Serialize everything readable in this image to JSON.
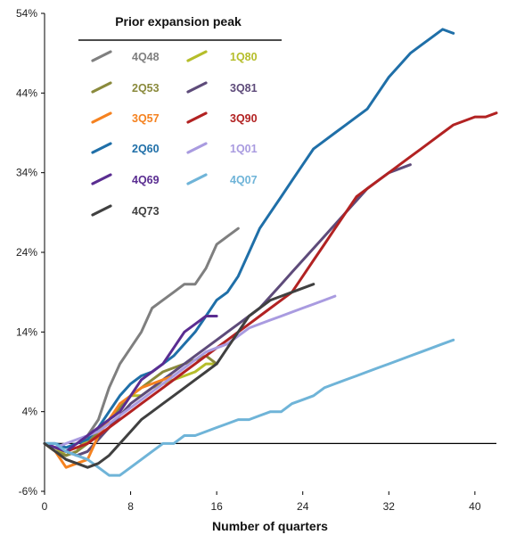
{
  "chart_data": {
    "type": "line",
    "xlabel": "Number of quarters",
    "ylabel": "",
    "xlim": [
      0,
      42
    ],
    "ylim": [
      -6,
      54
    ],
    "x_ticks": [
      0,
      8,
      16,
      24,
      32,
      40
    ],
    "y_ticks": [
      -6,
      4,
      14,
      24,
      34,
      44,
      54
    ],
    "y_tick_labels": [
      "-6%",
      "4%",
      "14%",
      "24%",
      "34%",
      "44%",
      "54%"
    ],
    "grid": false,
    "legend": {
      "title": "Prior expansion peak",
      "placement": "top-left",
      "columns": 2
    },
    "series": [
      {
        "name": "4Q48",
        "color": "#7f7f7f",
        "values": [
          [
            0,
            0
          ],
          [
            1,
            -1
          ],
          [
            2,
            -1.5
          ],
          [
            3,
            -1
          ],
          [
            4,
            1
          ],
          [
            5,
            3
          ],
          [
            6,
            7
          ],
          [
            7,
            10
          ],
          [
            8,
            12
          ],
          [
            9,
            14
          ],
          [
            10,
            17
          ],
          [
            11,
            18
          ],
          [
            12,
            19
          ],
          [
            13,
            20
          ],
          [
            14,
            20
          ],
          [
            15,
            22
          ],
          [
            16,
            25
          ],
          [
            17,
            26
          ],
          [
            18,
            27
          ]
        ]
      },
      {
        "name": "1Q80",
        "color": "#b5bd2a",
        "values": [
          [
            0,
            0
          ],
          [
            1,
            -0.5
          ],
          [
            2,
            -1.5
          ],
          [
            3,
            -1
          ],
          [
            4,
            0.5
          ],
          [
            5,
            2
          ],
          [
            6,
            3
          ],
          [
            7,
            4
          ],
          [
            8,
            6
          ],
          [
            9,
            6
          ],
          [
            10,
            7
          ],
          [
            11,
            7.5
          ],
          [
            12,
            8
          ],
          [
            13,
            8.5
          ],
          [
            14,
            9
          ],
          [
            15,
            10
          ],
          [
            16,
            10
          ]
        ]
      },
      {
        "name": "2Q53",
        "color": "#8a8a3c",
        "values": [
          [
            0,
            0
          ],
          [
            1,
            -1
          ],
          [
            2,
            -1.5
          ],
          [
            3,
            -1
          ],
          [
            4,
            0
          ],
          [
            5,
            1.5
          ],
          [
            6,
            3
          ],
          [
            7,
            4.5
          ],
          [
            8,
            6
          ],
          [
            9,
            7
          ],
          [
            10,
            8
          ],
          [
            11,
            9
          ],
          [
            12,
            9.5
          ],
          [
            13,
            10
          ],
          [
            14,
            10.5
          ],
          [
            15,
            11
          ],
          [
            16,
            10
          ]
        ]
      },
      {
        "name": "3Q81",
        "color": "#5e4b7a",
        "values": [
          [
            0,
            0
          ],
          [
            1,
            -0.5
          ],
          [
            2,
            -1
          ],
          [
            3,
            -1.5
          ],
          [
            4,
            -1
          ],
          [
            5,
            0.5
          ],
          [
            6,
            2
          ],
          [
            7,
            3.5
          ],
          [
            8,
            5
          ],
          [
            9,
            6
          ],
          [
            10,
            7
          ],
          [
            11,
            8
          ],
          [
            12,
            9
          ],
          [
            13,
            10
          ],
          [
            14,
            11
          ],
          [
            15,
            12
          ],
          [
            16,
            13
          ],
          [
            17,
            14
          ],
          [
            18,
            15
          ],
          [
            19,
            16
          ],
          [
            20,
            17
          ],
          [
            21,
            18.5
          ],
          [
            22,
            20
          ],
          [
            23,
            21.5
          ],
          [
            24,
            23
          ],
          [
            25,
            24.5
          ],
          [
            26,
            26
          ],
          [
            27,
            27.5
          ],
          [
            28,
            29
          ],
          [
            29,
            30.5
          ],
          [
            30,
            32
          ],
          [
            31,
            33
          ],
          [
            32,
            34
          ],
          [
            33,
            34.5
          ],
          [
            34,
            35
          ]
        ]
      },
      {
        "name": "3Q57",
        "color": "#f58220",
        "values": [
          [
            0,
            0
          ],
          [
            1,
            -1
          ],
          [
            2,
            -3
          ],
          [
            3,
            -2.5
          ],
          [
            4,
            -2
          ],
          [
            5,
            1
          ],
          [
            6,
            3
          ],
          [
            7,
            5
          ],
          [
            8,
            6
          ],
          [
            9,
            7
          ],
          [
            10,
            7.5
          ],
          [
            11,
            8
          ],
          [
            12,
            8.5
          ]
        ]
      },
      {
        "name": "3Q90",
        "color": "#b22222",
        "values": [
          [
            0,
            0
          ],
          [
            1,
            -0.5
          ],
          [
            2,
            -1
          ],
          [
            3,
            -0.5
          ],
          [
            4,
            0
          ],
          [
            5,
            1
          ],
          [
            6,
            2
          ],
          [
            7,
            3
          ],
          [
            8,
            4
          ],
          [
            9,
            5
          ],
          [
            10,
            6
          ],
          [
            11,
            7
          ],
          [
            12,
            8
          ],
          [
            13,
            9
          ],
          [
            14,
            10
          ],
          [
            15,
            11
          ],
          [
            16,
            12
          ],
          [
            17,
            13
          ],
          [
            18,
            14
          ],
          [
            19,
            15
          ],
          [
            20,
            16
          ],
          [
            21,
            17
          ],
          [
            22,
            18
          ],
          [
            23,
            19
          ],
          [
            24,
            21
          ],
          [
            25,
            23
          ],
          [
            26,
            25
          ],
          [
            27,
            27
          ],
          [
            28,
            29
          ],
          [
            29,
            31
          ],
          [
            30,
            32
          ],
          [
            31,
            33
          ],
          [
            32,
            34
          ],
          [
            33,
            35
          ],
          [
            34,
            36
          ],
          [
            35,
            37
          ],
          [
            36,
            38
          ],
          [
            37,
            39
          ],
          [
            38,
            40
          ],
          [
            39,
            40.5
          ],
          [
            40,
            41
          ],
          [
            41,
            41
          ],
          [
            42,
            41.5
          ]
        ]
      },
      {
        "name": "2Q60",
        "color": "#1f6fa8",
        "values": [
          [
            0,
            0
          ],
          [
            1,
            0
          ],
          [
            2,
            -0.5
          ],
          [
            3,
            0
          ],
          [
            4,
            0.5
          ],
          [
            5,
            2
          ],
          [
            6,
            4
          ],
          [
            7,
            6
          ],
          [
            8,
            7.5
          ],
          [
            9,
            8.5
          ],
          [
            10,
            9
          ],
          [
            11,
            10
          ],
          [
            12,
            11
          ],
          [
            13,
            12.5
          ],
          [
            14,
            14
          ],
          [
            15,
            16
          ],
          [
            16,
            18
          ],
          [
            17,
            19
          ],
          [
            18,
            21
          ],
          [
            19,
            24
          ],
          [
            20,
            27
          ],
          [
            21,
            29
          ],
          [
            22,
            31
          ],
          [
            23,
            33
          ],
          [
            24,
            35
          ],
          [
            25,
            37
          ],
          [
            26,
            38
          ],
          [
            27,
            39
          ],
          [
            28,
            40
          ],
          [
            29,
            41
          ],
          [
            30,
            42
          ],
          [
            31,
            44
          ],
          [
            32,
            46
          ],
          [
            33,
            47.5
          ],
          [
            34,
            49
          ],
          [
            35,
            50
          ],
          [
            36,
            51
          ],
          [
            37,
            52
          ],
          [
            38,
            51.5
          ]
        ]
      },
      {
        "name": "1Q01",
        "color": "#a99be0",
        "values": [
          [
            0,
            0
          ],
          [
            1,
            -0.5
          ],
          [
            2,
            0
          ],
          [
            3,
            0.5
          ],
          [
            4,
            1
          ],
          [
            5,
            1.5
          ],
          [
            6,
            2.5
          ],
          [
            7,
            3.5
          ],
          [
            8,
            4.5
          ],
          [
            9,
            5.5
          ],
          [
            10,
            6.5
          ],
          [
            11,
            7.5
          ],
          [
            12,
            8.5
          ],
          [
            13,
            9.5
          ],
          [
            14,
            10.5
          ],
          [
            15,
            11.5
          ],
          [
            16,
            12
          ],
          [
            17,
            12.5
          ],
          [
            18,
            13.5
          ],
          [
            19,
            14.5
          ],
          [
            20,
            15
          ],
          [
            21,
            15.5
          ],
          [
            22,
            16
          ],
          [
            23,
            16.5
          ],
          [
            24,
            17
          ],
          [
            25,
            17.5
          ],
          [
            26,
            18
          ],
          [
            27,
            18.5
          ]
        ]
      },
      {
        "name": "4Q69",
        "color": "#5a2d91",
        "values": [
          [
            0,
            0
          ],
          [
            1,
            -0.5
          ],
          [
            2,
            -1
          ],
          [
            3,
            0
          ],
          [
            4,
            1
          ],
          [
            5,
            2
          ],
          [
            6,
            3
          ],
          [
            7,
            4
          ],
          [
            8,
            6
          ],
          [
            9,
            8
          ],
          [
            10,
            9
          ],
          [
            11,
            10
          ],
          [
            12,
            12
          ],
          [
            13,
            14
          ],
          [
            14,
            15
          ],
          [
            15,
            16
          ],
          [
            16,
            16
          ]
        ]
      },
      {
        "name": "4Q07",
        "color": "#6fb4d8",
        "values": [
          [
            0,
            0
          ],
          [
            1,
            0
          ],
          [
            2,
            -1
          ],
          [
            3,
            -1.5
          ],
          [
            4,
            -2
          ],
          [
            5,
            -3
          ],
          [
            6,
            -4
          ],
          [
            7,
            -4
          ],
          [
            8,
            -3
          ],
          [
            9,
            -2
          ],
          [
            10,
            -1
          ],
          [
            11,
            0
          ],
          [
            12,
            0
          ],
          [
            13,
            1
          ],
          [
            14,
            1
          ],
          [
            15,
            1.5
          ],
          [
            16,
            2
          ],
          [
            17,
            2.5
          ],
          [
            18,
            3
          ],
          [
            19,
            3
          ],
          [
            20,
            3.5
          ],
          [
            21,
            4
          ],
          [
            22,
            4
          ],
          [
            23,
            5
          ],
          [
            24,
            5.5
          ],
          [
            25,
            6
          ],
          [
            26,
            7
          ],
          [
            27,
            7.5
          ],
          [
            28,
            8
          ],
          [
            29,
            8.5
          ],
          [
            30,
            9
          ],
          [
            31,
            9.5
          ],
          [
            32,
            10
          ],
          [
            33,
            10.5
          ],
          [
            34,
            11
          ],
          [
            35,
            11.5
          ],
          [
            36,
            12
          ],
          [
            37,
            12.5
          ],
          [
            38,
            13
          ]
        ]
      },
      {
        "name": "4Q73",
        "color": "#404040",
        "values": [
          [
            0,
            0
          ],
          [
            1,
            -1
          ],
          [
            2,
            -2
          ],
          [
            3,
            -2.5
          ],
          [
            4,
            -3
          ],
          [
            5,
            -2.5
          ],
          [
            6,
            -1.5
          ],
          [
            7,
            0
          ],
          [
            8,
            1.5
          ],
          [
            9,
            3
          ],
          [
            10,
            4
          ],
          [
            11,
            5
          ],
          [
            12,
            6
          ],
          [
            13,
            7
          ],
          [
            14,
            8
          ],
          [
            15,
            9
          ],
          [
            16,
            10
          ],
          [
            17,
            12
          ],
          [
            18,
            14
          ],
          [
            19,
            16
          ],
          [
            20,
            17
          ],
          [
            21,
            18
          ],
          [
            22,
            18.5
          ],
          [
            23,
            19
          ],
          [
            24,
            19.5
          ],
          [
            25,
            20
          ]
        ]
      }
    ]
  }
}
